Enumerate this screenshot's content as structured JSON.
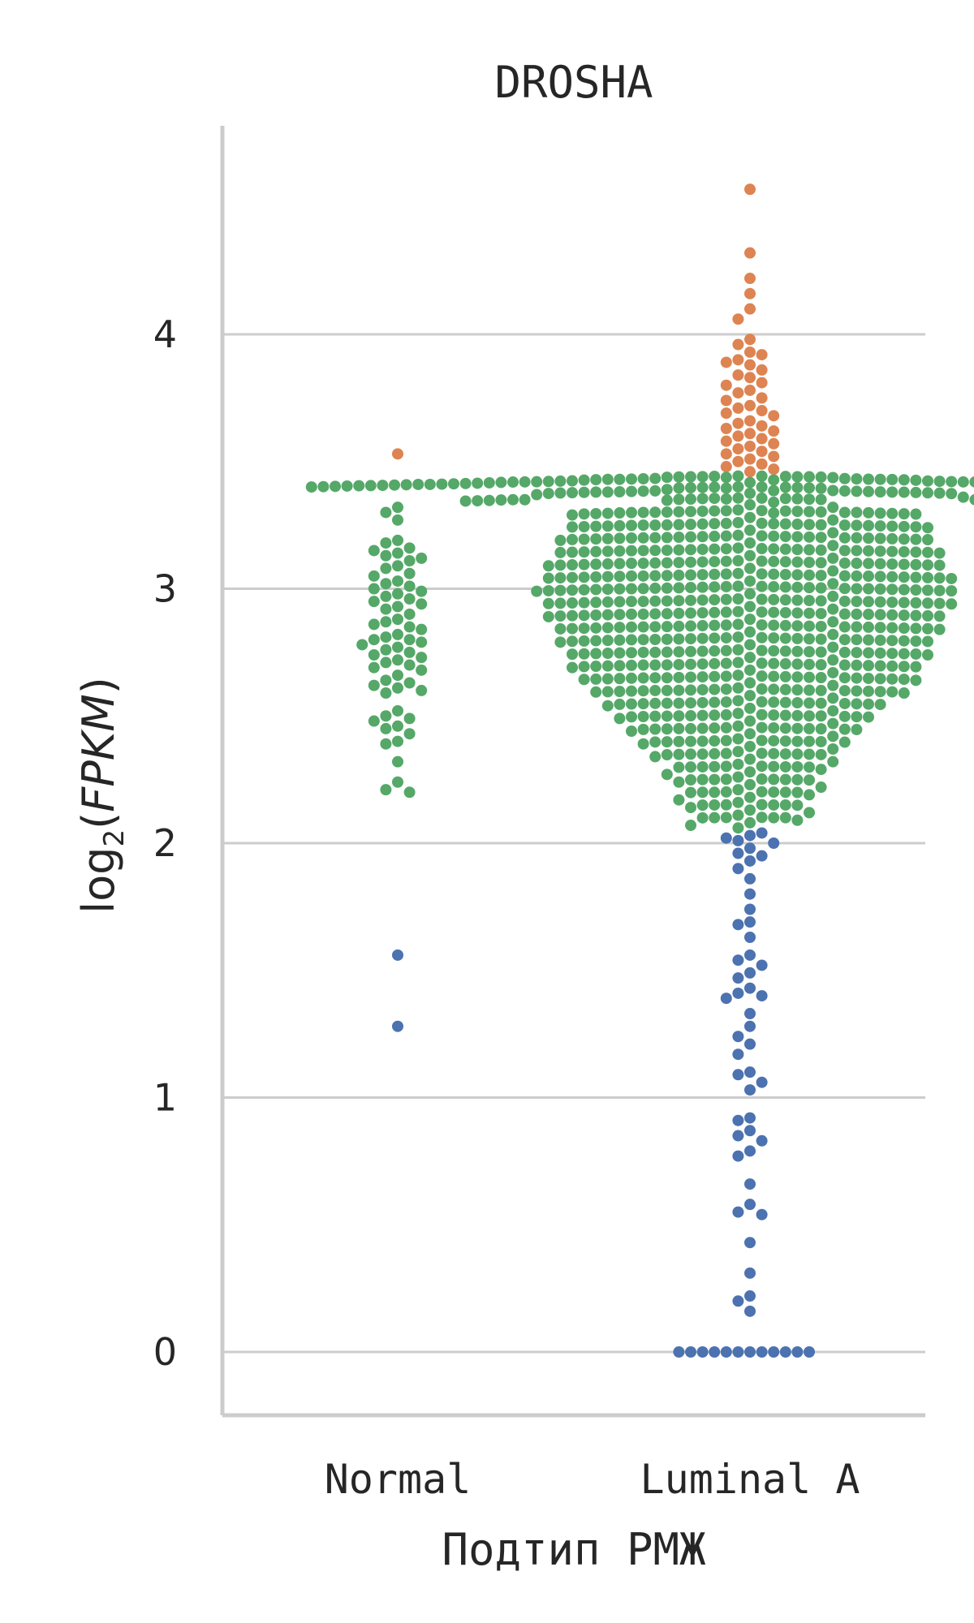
{
  "chart_data": {
    "type": "scatter",
    "subtype": "swarm",
    "title": "DROSHA",
    "xlabel": "Подтип РМЖ",
    "ylabel": {
      "prefix": "log",
      "subscript": "2",
      "open": "(",
      "italic": "FPKM",
      "close": ")"
    },
    "categories": [
      "Normal",
      "Luminal A"
    ],
    "yticks": [
      0,
      1,
      2,
      3,
      4
    ],
    "ylim": [
      -0.23,
      4.82
    ],
    "grid": "horizontal",
    "legend": "none",
    "colors": {
      "low": "#4c72b0",
      "mid": "#55a868",
      "high": "#dd8452"
    },
    "thresholds": {
      "low_below": 2.05,
      "high_above": 3.45
    },
    "series": [
      {
        "category": "Normal",
        "values": [
          3.53,
          3.32,
          3.3,
          3.27,
          3.19,
          3.18,
          3.16,
          3.15,
          3.14,
          3.13,
          3.12,
          3.11,
          3.09,
          3.08,
          3.06,
          3.05,
          3.03,
          3.02,
          3.01,
          3.0,
          2.99,
          2.98,
          2.97,
          2.96,
          2.95,
          2.94,
          2.93,
          2.92,
          2.9,
          2.88,
          2.87,
          2.86,
          2.85,
          2.84,
          2.82,
          2.81,
          2.8,
          2.8,
          2.79,
          2.78,
          2.77,
          2.76,
          2.75,
          2.74,
          2.73,
          2.72,
          2.71,
          2.7,
          2.69,
          2.68,
          2.66,
          2.64,
          2.63,
          2.62,
          2.61,
          2.6,
          2.59,
          2.52,
          2.5,
          2.49,
          2.48,
          2.46,
          2.45,
          2.43,
          2.4,
          2.39,
          2.32,
          2.24,
          2.21,
          2.2,
          1.56,
          1.28
        ]
      },
      {
        "category": "Luminal A",
        "values": [
          4.57,
          4.32,
          4.22,
          4.16,
          4.1,
          4.06,
          3.98,
          3.96,
          3.93,
          3.92,
          3.9,
          3.89,
          3.88,
          3.86,
          3.84,
          3.83,
          3.81,
          3.8,
          3.78,
          3.77,
          3.75,
          3.74,
          3.72,
          3.71,
          3.7,
          3.69,
          3.68,
          3.66,
          3.65,
          3.64,
          3.63,
          3.62,
          3.61,
          3.6,
          3.59,
          3.58,
          3.57,
          3.56,
          3.55,
          3.54,
          3.53,
          3.52,
          3.51,
          3.5,
          3.49,
          3.48,
          3.47,
          3.46,
          3.44,
          3.43,
          3.42,
          3.41,
          3.4,
          3.39,
          3.38,
          3.37,
          3.36,
          3.35,
          3.34,
          3.33,
          3.32,
          3.31,
          3.3,
          3.29,
          3.28,
          3.27,
          3.26,
          3.25,
          3.24,
          3.23,
          3.22,
          3.21,
          3.2,
          3.19,
          3.18,
          3.17,
          3.16,
          3.15,
          3.14,
          3.13,
          3.12,
          3.11,
          3.1,
          3.09,
          3.08,
          3.07,
          3.06,
          3.05,
          3.04,
          3.03,
          3.02,
          3.01,
          3.0,
          2.99,
          2.98,
          2.97,
          2.96,
          2.95,
          2.94,
          2.93,
          2.92,
          2.91,
          2.9,
          2.89,
          2.88,
          2.87,
          2.86,
          2.85,
          2.84,
          2.83,
          2.82,
          2.81,
          2.8,
          2.79,
          2.78,
          2.77,
          2.76,
          2.75,
          2.74,
          2.73,
          2.72,
          2.71,
          2.7,
          2.69,
          2.68,
          2.67,
          2.66,
          2.65,
          2.64,
          2.63,
          2.62,
          2.61,
          2.6,
          2.59,
          2.58,
          2.57,
          2.56,
          2.55,
          2.54,
          2.53,
          2.52,
          2.51,
          2.5,
          2.49,
          2.48,
          2.47,
          2.46,
          2.45,
          2.44,
          2.43,
          2.42,
          2.41,
          2.4,
          2.39,
          2.38,
          2.37,
          2.36,
          2.35,
          2.34,
          2.33,
          2.32,
          2.31,
          2.3,
          2.29,
          2.28,
          2.27,
          2.26,
          2.25,
          2.24,
          2.23,
          2.22,
          2.21,
          2.2,
          2.19,
          2.18,
          2.17,
          2.16,
          2.15,
          2.14,
          2.13,
          2.12,
          2.11,
          2.1,
          2.09,
          2.08,
          2.07,
          2.06,
          2.04,
          2.03,
          2.02,
          2.01,
          2.0,
          1.98,
          1.96,
          1.95,
          1.93,
          1.9,
          1.86,
          1.8,
          1.74,
          1.69,
          1.68,
          1.63,
          1.56,
          1.54,
          1.52,
          1.49,
          1.47,
          1.43,
          1.41,
          1.4,
          1.39,
          1.33,
          1.28,
          1.24,
          1.21,
          1.17,
          1.1,
          1.09,
          1.06,
          1.03,
          0.92,
          0.91,
          0.87,
          0.85,
          0.83,
          0.79,
          0.77,
          0.66,
          0.58,
          0.55,
          0.54,
          0.43,
          0.31,
          0.22,
          0.2,
          0.16,
          0,
          0,
          0,
          0,
          0,
          0,
          0,
          0,
          0,
          0,
          0,
          0
        ],
        "dense_counts": [
          [
            3.44,
            12
          ],
          [
            3.43,
            14
          ],
          [
            3.42,
            16
          ],
          [
            3.41,
            18
          ],
          [
            3.4,
            20
          ],
          [
            3.38,
            22
          ],
          [
            3.35,
            23
          ],
          [
            3.3,
            25
          ],
          [
            3.25,
            26
          ],
          [
            3.2,
            27
          ],
          [
            3.15,
            28
          ],
          [
            3.1,
            29
          ],
          [
            3.05,
            30
          ],
          [
            3.0,
            31
          ],
          [
            2.95,
            30
          ],
          [
            2.9,
            29
          ],
          [
            2.85,
            28
          ],
          [
            2.8,
            27
          ],
          [
            2.75,
            26
          ],
          [
            2.7,
            25
          ],
          [
            2.65,
            24
          ],
          [
            2.6,
            22
          ],
          [
            2.55,
            19
          ],
          [
            2.5,
            17
          ],
          [
            2.45,
            15
          ],
          [
            2.4,
            13
          ],
          [
            2.35,
            11
          ],
          [
            2.3,
            9
          ],
          [
            2.25,
            8
          ],
          [
            2.2,
            7
          ],
          [
            2.15,
            6
          ],
          [
            2.1,
            5
          ]
        ]
      }
    ]
  }
}
